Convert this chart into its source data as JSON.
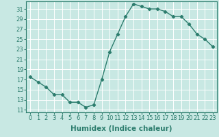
{
  "x": [
    0,
    1,
    2,
    3,
    4,
    5,
    6,
    7,
    8,
    9,
    10,
    11,
    12,
    13,
    14,
    15,
    16,
    17,
    18,
    19,
    20,
    21,
    22,
    23
  ],
  "y": [
    17.5,
    16.5,
    15.5,
    14.0,
    14.0,
    12.5,
    12.5,
    11.5,
    12.0,
    17.0,
    22.5,
    26.0,
    29.5,
    32.0,
    31.5,
    31.0,
    31.0,
    30.5,
    29.5,
    29.5,
    28.0,
    26.0,
    25.0,
    23.5
  ],
  "xlabel": "Humidex (Indice chaleur)",
  "yticks": [
    11,
    13,
    15,
    17,
    19,
    21,
    23,
    25,
    27,
    29,
    31
  ],
  "xticks": [
    0,
    1,
    2,
    3,
    4,
    5,
    6,
    7,
    8,
    9,
    10,
    11,
    12,
    13,
    14,
    15,
    16,
    17,
    18,
    19,
    20,
    21,
    22,
    23
  ],
  "ylim": [
    10.5,
    32.5
  ],
  "xlim": [
    -0.5,
    23.5
  ],
  "line_color": "#2d7d6e",
  "bg_color": "#c8e8e3",
  "grid_color": "#ffffff",
  "marker": "D",
  "marker_size": 2.2,
  "line_width": 1.0,
  "xlabel_fontsize": 7.5,
  "tick_fontsize": 6.0
}
